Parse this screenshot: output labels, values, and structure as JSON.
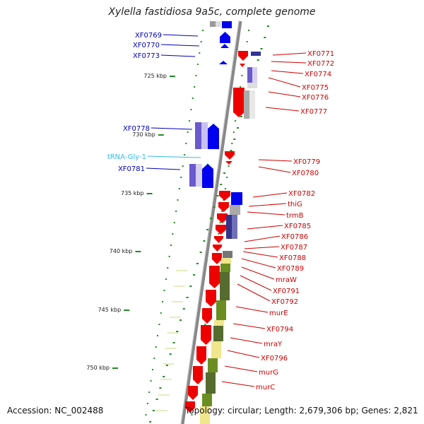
{
  "title": "Xylella fastidiosa 9a5c, complete genome",
  "accession": "Accession: NC_002488",
  "topology": "Topology: circular; Length: 2,679,306 bp; Genes: 2,821",
  "colors": {
    "forward_cds": "#0000ee",
    "reverse_cds": "#ee0000",
    "trna": "#33bbee",
    "backbone": "#888888",
    "ticks": "#228822",
    "olive_track": "#6b8e23",
    "cream_track": "#f0e68c"
  },
  "scale_labels": [
    "725 kbp",
    "730 kbp",
    "735 kbp",
    "740 kbp",
    "745 kbp",
    "750 kbp"
  ],
  "left_labels": [
    {
      "text": "XF0769",
      "kind": "forward"
    },
    {
      "text": "XF0770",
      "kind": "forward"
    },
    {
      "text": "XF0773",
      "kind": "forward"
    },
    {
      "text": "XF0778",
      "kind": "forward"
    },
    {
      "text": "tRNA-Gly-1",
      "kind": "trna"
    },
    {
      "text": "XF0781",
      "kind": "forward"
    }
  ],
  "right_labels": [
    "XF0771",
    "XF0772",
    "XF0774",
    "XF0775",
    "XF0776",
    "XF0777",
    "XF0779",
    "XF0780",
    "XF0782",
    "thiG",
    "trmB",
    "XF0785",
    "XF0786",
    "XF0787",
    "XF0788",
    "XF0789",
    "mraW",
    "XF0791",
    "XF0792",
    "murE",
    "XF0794",
    "mraY",
    "XF0796",
    "murG",
    "murC"
  ]
}
